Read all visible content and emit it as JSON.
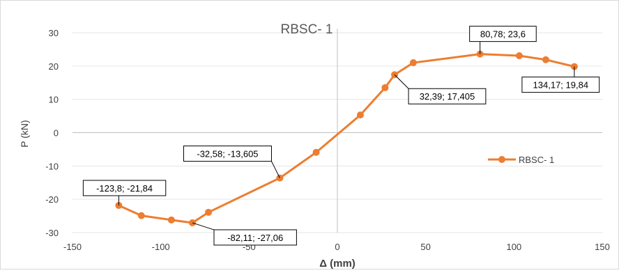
{
  "chart_data": {
    "type": "scatter",
    "title": "RBSC- 1",
    "xlabel": "Δ (mm)",
    "ylabel": "P (kN)",
    "xlim": [
      -150,
      150
    ],
    "ylim": [
      -30,
      30
    ],
    "x_ticks": [
      -150,
      -100,
      -50,
      0,
      50,
      100,
      150
    ],
    "y_ticks": [
      30,
      20,
      10,
      0,
      -10,
      -20,
      -30
    ],
    "x_tick_labels": [
      "-150",
      "-100",
      "-50",
      "0",
      "50",
      "100",
      "150"
    ],
    "y_tick_labels": [
      "30",
      "20",
      "10",
      "0",
      "-10",
      "-20",
      "-30"
    ],
    "grid": "horizontal",
    "legend_position": "right",
    "series": [
      {
        "name": "RBSC- 1",
        "color": "#ED7D31",
        "marker": "circle",
        "points": [
          {
            "x": -123.8,
            "y": -21.84
          },
          {
            "x": -111,
            "y": -24.9
          },
          {
            "x": -94,
            "y": -26.2
          },
          {
            "x": -82.11,
            "y": -27.06
          },
          {
            "x": -73,
            "y": -23.9
          },
          {
            "x": -32.58,
            "y": -13.605
          },
          {
            "x": -12,
            "y": -5.9
          },
          {
            "x": 13,
            "y": 5.3
          },
          {
            "x": 27,
            "y": 13.5
          },
          {
            "x": 32.39,
            "y": 17.405
          },
          {
            "x": 43,
            "y": 21
          },
          {
            "x": 80.78,
            "y": 23.6
          },
          {
            "x": 103,
            "y": 23.1
          },
          {
            "x": 118,
            "y": 21.9
          },
          {
            "x": 134.17,
            "y": 19.84
          }
        ]
      }
    ],
    "annotations": [
      {
        "text": "-123,8; -21,84",
        "x": -123.8,
        "y": -21.84
      },
      {
        "text": "-82,11; -27,06",
        "x": -82.11,
        "y": -27.06
      },
      {
        "text": "-32,58; -13,605",
        "x": -32.58,
        "y": -13.605
      },
      {
        "text": "32,39; 17,405",
        "x": 32.39,
        "y": 17.405
      },
      {
        "text": "80,78; 23,6",
        "x": 80.78,
        "y": 23.6
      },
      {
        "text": "134,17; 19,84",
        "x": 134.17,
        "y": 19.84
      }
    ]
  }
}
